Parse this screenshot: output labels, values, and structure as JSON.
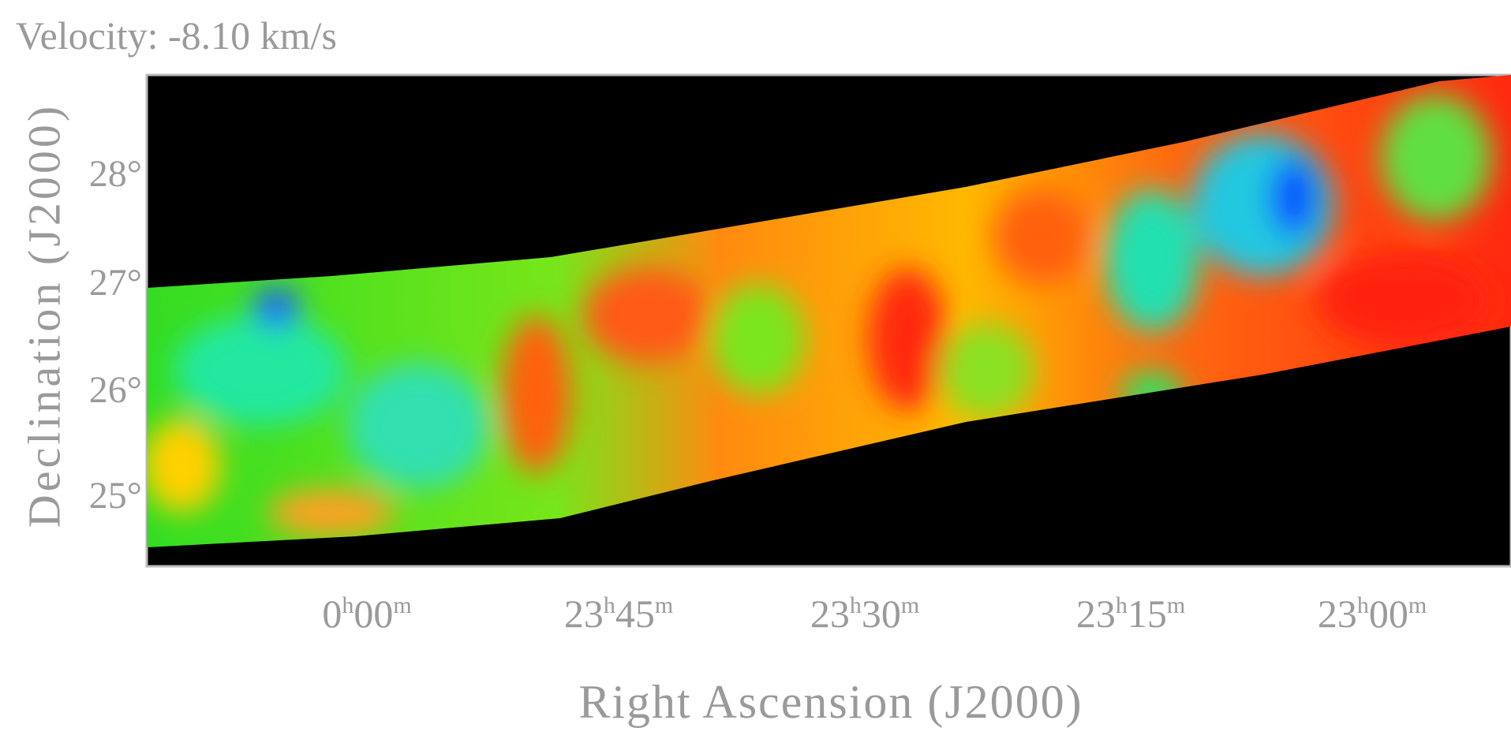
{
  "header": {
    "title": "Velocity: -8.10 km/s"
  },
  "axes": {
    "y_label": "Declination (J2000)",
    "x_label": "Right Ascension (J2000)",
    "y_ticks": [
      "28°",
      "27°",
      "26°",
      "25°"
    ],
    "x_ticks": [
      [
        "0",
        "h",
        "00",
        "m"
      ],
      [
        "23",
        "h",
        "45",
        "m"
      ],
      [
        "23",
        "h",
        "30",
        "m"
      ],
      [
        "23",
        "h",
        "15",
        "m"
      ],
      [
        "23",
        "h",
        "00",
        "m"
      ]
    ]
  }
}
